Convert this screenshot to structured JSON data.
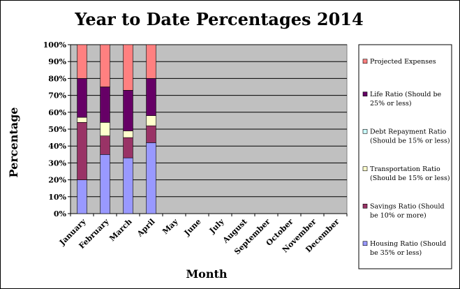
{
  "chart_data": {
    "type": "bar",
    "stacked": true,
    "percent_stacked": true,
    "title": "Year to Date Percentages 2014",
    "xlabel": "Month",
    "ylabel": "Percentage",
    "ylim": [
      0,
      100
    ],
    "yticks": [
      "0%",
      "10%",
      "20%",
      "30%",
      "40%",
      "50%",
      "60%",
      "70%",
      "80%",
      "90%",
      "100%"
    ],
    "categories": [
      "January",
      "February",
      "March",
      "April",
      "May",
      "June",
      "July",
      "August",
      "September",
      "October",
      "November",
      "December"
    ],
    "grid": true,
    "plot_background": "#c0c0c0",
    "legend_position": "right",
    "series": [
      {
        "name_lines": [
          "Housing Ratio (Should",
          "be 35% or less)"
        ],
        "color": "#9999ff",
        "values": [
          20,
          35,
          33,
          42,
          null,
          null,
          null,
          null,
          null,
          null,
          null,
          null
        ]
      },
      {
        "name_lines": [
          "Savings Ratio (Should",
          "be 10% or more)"
        ],
        "color": "#993366",
        "values": [
          34,
          11,
          12,
          10,
          null,
          null,
          null,
          null,
          null,
          null,
          null,
          null
        ]
      },
      {
        "name_lines": [
          "Transportation Ratio",
          "(Should be 15% or less)"
        ],
        "color": "#ffffcc",
        "values": [
          3,
          8,
          4,
          6,
          null,
          null,
          null,
          null,
          null,
          null,
          null,
          null
        ]
      },
      {
        "name_lines": [
          "Debt Repayment Ratio",
          "(Should be 15% or less)"
        ],
        "color": "#ccffff",
        "values": [
          0,
          0,
          0,
          0,
          null,
          null,
          null,
          null,
          null,
          null,
          null,
          null
        ]
      },
      {
        "name_lines": [
          "Life Ratio (Should be",
          "25% or less)"
        ],
        "color": "#660066",
        "values": [
          23,
          21,
          24,
          22,
          null,
          null,
          null,
          null,
          null,
          null,
          null,
          null
        ]
      },
      {
        "name_lines": [
          "Projected Expenses"
        ],
        "color": "#ff8080",
        "values": [
          20,
          25,
          27,
          20,
          null,
          null,
          null,
          null,
          null,
          null,
          null,
          null
        ]
      }
    ]
  }
}
